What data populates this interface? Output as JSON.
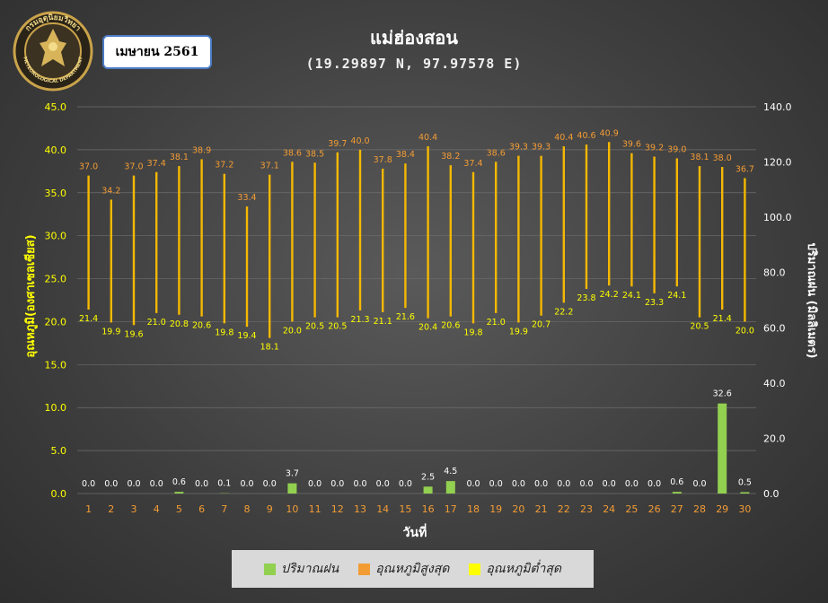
{
  "header": {
    "month_label": "เมษายน 2561",
    "title": "แม่ฮ่องสอน",
    "subtitle": "(19.29897 N, 97.97578 E)",
    "logo": {
      "icon": "meteorological-department-seal-icon",
      "text_top": "กรมอุตุนิยมวิทยา",
      "text_bottom": "METEOROLOGICAL DEPARTMENT"
    }
  },
  "legend": {
    "items": [
      {
        "label": "ปริมาณฝน",
        "color": "#92d050"
      },
      {
        "label": "อุณหภูมิสูงสุด",
        "color": "#f39c34"
      },
      {
        "label": "อุณหภูมิต่ำสุด",
        "color": "#ffff00"
      }
    ]
  },
  "chart_data": {
    "type": "bar",
    "xlabel": "วันที่",
    "ylabel_left": "อุณหภูมิ(องศาเซลเซียส)",
    "ylabel_right": "ปริมาณฝน (มิลลิเมตร)",
    "ylim_left": [
      0,
      45
    ],
    "ylim_right": [
      0,
      140
    ],
    "yticks_left": [
      "0.0",
      "5.0",
      "10.0",
      "15.0",
      "20.0",
      "25.0",
      "30.0",
      "35.0",
      "40.0",
      "45.0"
    ],
    "yticks_right": [
      "0.0",
      "20.0",
      "40.0",
      "60.0",
      "80.0",
      "100.0",
      "120.0",
      "140.0"
    ],
    "grid": true,
    "legend_position": "bottom",
    "categories": [
      "1",
      "2",
      "3",
      "4",
      "5",
      "6",
      "7",
      "8",
      "9",
      "10",
      "11",
      "12",
      "13",
      "14",
      "15",
      "16",
      "17",
      "18",
      "19",
      "20",
      "21",
      "22",
      "23",
      "24",
      "25",
      "26",
      "27",
      "28",
      "29",
      "30"
    ],
    "series": [
      {
        "name": "ปริมาณฝน",
        "axis": "right",
        "color": "#92d050",
        "values": [
          0.0,
          0.0,
          0.0,
          0.0,
          0.6,
          0.0,
          0.1,
          0.0,
          0.0,
          3.7,
          0.0,
          0.0,
          0.0,
          0.0,
          0.0,
          2.5,
          4.5,
          0.0,
          0.0,
          0.0,
          0.0,
          0.0,
          0.0,
          0.0,
          0.0,
          0.0,
          0.6,
          0.0,
          32.6,
          0.5
        ],
        "labels": [
          "0.0",
          "0.0",
          "0.0",
          "0.0",
          "0.6",
          "0.0",
          "0.1",
          "0.0",
          "0.0",
          "3.7",
          "0.0",
          "0.0",
          "0.0",
          "0.0",
          "0.0",
          "2.5",
          "4.5",
          "0.0",
          "0.0",
          "0.0",
          "0.0",
          "0.0",
          "0.0",
          "0.0",
          "0.0",
          "0.0",
          "0.6",
          "0.0",
          "32.6",
          "0.5"
        ]
      },
      {
        "name": "อุณหภูมิสูงสุด",
        "axis": "left",
        "color": "#f39c34",
        "values": [
          37.0,
          34.2,
          37.0,
          37.4,
          38.1,
          38.9,
          37.2,
          33.4,
          37.1,
          38.6,
          38.5,
          39.7,
          40.0,
          37.8,
          38.4,
          40.4,
          38.2,
          37.4,
          38.6,
          39.3,
          39.3,
          40.4,
          40.6,
          40.9,
          39.6,
          39.2,
          39.0,
          38.1,
          38.0,
          36.7
        ],
        "labels": [
          "37.0",
          "34.2",
          "37.0",
          "37.4",
          "38.1",
          "38.9",
          "37.2",
          "33.4",
          "37.1",
          "38.6",
          "38.5",
          "39.7",
          "40.0",
          "37.8",
          "38.4",
          "40.4",
          "38.2",
          "37.4",
          "38.6",
          "39.3",
          "39.3",
          "40.4",
          "40.6",
          "40.9",
          "39.6",
          "39.2",
          "39.0",
          "38.1",
          "38.0",
          "36.7"
        ]
      },
      {
        "name": "อุณหภูมิต่ำสุด",
        "axis": "left",
        "color": "#ffff00",
        "values": [
          21.4,
          19.9,
          19.6,
          21.0,
          20.8,
          20.6,
          19.8,
          19.4,
          18.1,
          20.0,
          20.5,
          20.5,
          21.3,
          21.1,
          21.6,
          20.4,
          20.6,
          19.8,
          21.0,
          19.9,
          20.7,
          22.2,
          23.8,
          24.2,
          24.1,
          23.3,
          24.1,
          20.5,
          21.4,
          20.0
        ],
        "labels": [
          "21.4",
          "19.9",
          "19.6",
          "21.0",
          "20.8",
          "20.6",
          "19.8",
          "19.4",
          "18.1",
          "20.0",
          "20.5",
          "20.5",
          "21.3",
          "21.1",
          "21.6",
          "20.4",
          "20.6",
          "19.8",
          "21.0",
          "19.9",
          "20.7",
          "22.2",
          "23.8",
          "24.2",
          "24.1",
          "23.3",
          "24.1",
          "20.5",
          "21.4",
          "20.0"
        ]
      }
    ]
  }
}
